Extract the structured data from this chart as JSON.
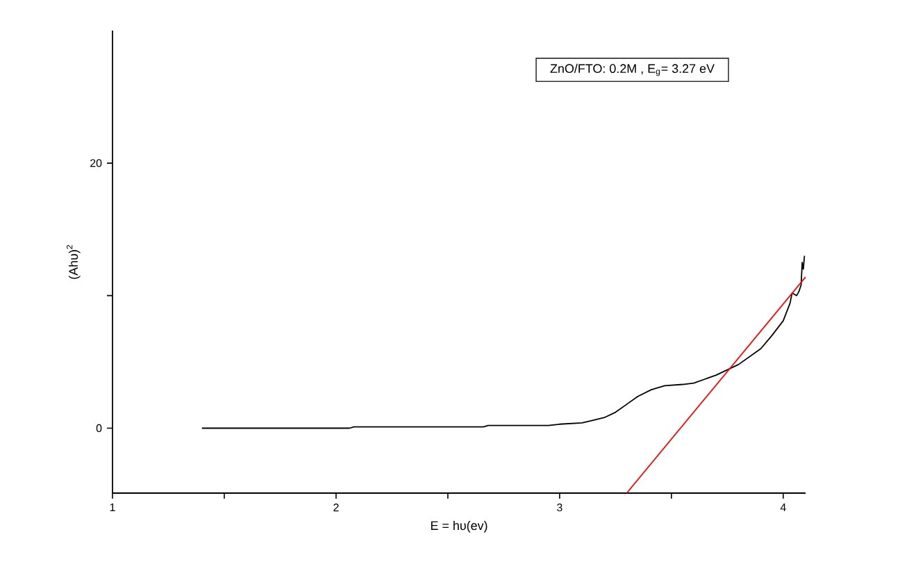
{
  "chart_data": {
    "type": "line",
    "xlabel": "E = hυ(ev)",
    "ylabel": "(Ahυ)$^{2}$",
    "annotations": [
      "ZnO/FTO: 0.2M , E$_{g}$= 3.27  eV"
    ],
    "xlim": [
      1,
      4.1
    ],
    "ylim": [
      -4.9,
      30
    ],
    "xticks": [
      1,
      {
        "value": 1.5,
        "label": null
      },
      2,
      {
        "value": 2.5,
        "label": null
      },
      3,
      {
        "value": 3.5,
        "label": null
      },
      4
    ],
    "yticks": [
      0,
      {
        "value": 10,
        "label": null
      },
      20
    ],
    "grid": false,
    "series": [
      {
        "color": "#000000",
        "x": [
          1.4,
          1.8,
          2.06,
          2.08,
          2.5,
          2.66,
          2.68,
          2.95,
          3.0,
          3.1,
          3.15,
          3.2,
          3.25,
          3.3,
          3.35,
          3.41,
          3.47,
          3.55,
          3.6,
          3.7,
          3.8,
          3.9,
          3.95,
          4.0,
          4.03,
          4.04,
          4.06,
          4.07,
          4.08,
          4.085,
          4.09,
          4.095
        ],
        "values": [
          0,
          0,
          0,
          0.1,
          0.1,
          0.1,
          0.2,
          0.2,
          0.3,
          0.4,
          0.6,
          0.8,
          1.2,
          1.8,
          2.4,
          2.9,
          3.2,
          3.3,
          3.4,
          4.0,
          4.8,
          6.0,
          7.0,
          8.1,
          9.4,
          10.2,
          10.0,
          10.3,
          10.8,
          12.5,
          12.0,
          13.0
        ]
      },
      {
        "type": "line",
        "color": "#ff0000",
        "x": [
          3.3,
          4.1
        ],
        "values": [
          -4.9,
          11.4
        ]
      }
    ]
  }
}
